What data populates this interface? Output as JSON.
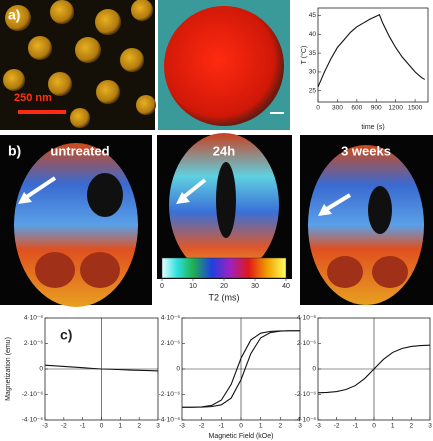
{
  "panels": {
    "a": {
      "label": "a)",
      "scale_bar": "250 nm"
    },
    "b": {
      "label": "b)",
      "images": [
        "untreated",
        "24h",
        "3 weeks"
      ],
      "colorbar": {
        "lim": [
          0,
          40
        ],
        "ticks": [
          0,
          10,
          20,
          30,
          40
        ],
        "label": "T2 (ms)"
      }
    },
    "c": {
      "label": "c)"
    }
  },
  "chart_data": [
    {
      "type": "line",
      "xlabel": "time (s)",
      "ylabel": "T (°C)",
      "x": [
        0,
        100,
        200,
        300,
        400,
        500,
        600,
        700,
        800,
        900,
        950,
        1000,
        1100,
        1200,
        1300,
        1400,
        1500,
        1600,
        1650
      ],
      "series": [
        {
          "color": "#111111",
          "values": [
            26,
            30,
            33.5,
            36.5,
            38.5,
            40.5,
            42,
            43,
            44,
            44.8,
            45.2,
            43,
            39.5,
            36.5,
            34,
            32,
            30,
            28.5,
            28
          ]
        }
      ],
      "xlim": [
        0,
        1700
      ],
      "ylim": [
        22,
        47
      ],
      "xticks": [
        0,
        300,
        600,
        900,
        1200,
        1500
      ],
      "yticks": [
        25,
        30,
        35,
        40,
        45
      ]
    },
    {
      "type": "line",
      "zero_lines": true,
      "x": [
        -3,
        -2.5,
        -2,
        -1.5,
        -1,
        -0.5,
        0,
        0.5,
        1,
        1.5,
        2,
        2.5,
        3
      ],
      "series": [
        {
          "color": "#111111",
          "values": [
            3e-07,
            2.5e-07,
            2e-07,
            1.5e-07,
            1e-07,
            5e-08,
            0,
            -2e-08,
            -5e-08,
            -8e-08,
            -1e-07,
            -1.2e-07,
            -1.5e-07
          ]
        }
      ],
      "xlim": [
        -3,
        3
      ],
      "ylim": [
        -4e-06,
        4e-06
      ],
      "xticks": [
        -3,
        -2,
        -1,
        0,
        1,
        2,
        3
      ],
      "yticks": [
        {
          "value": 4e-06,
          "label": "4·10⁻⁶"
        },
        {
          "value": 2e-06,
          "label": "2·10⁻⁶"
        },
        0,
        {
          "value": -2e-06,
          "label": "-2·10⁻⁶"
        },
        {
          "value": -4e-06,
          "label": "-4·10⁻⁶"
        }
      ]
    },
    {
      "type": "line",
      "zero_lines": true,
      "xlabel": "Magnetic Field (kOe)",
      "ylabel": "Magnetization (emu)",
      "x": [
        -3,
        -2.5,
        -2,
        -1.5,
        -1,
        -0.5,
        0,
        0.5,
        1,
        1.5,
        2,
        2.5,
        3
      ],
      "series": [
        {
          "color": "#111111",
          "values": [
            -3e-06,
            -3e-06,
            -2.99e-06,
            -2.95e-06,
            -2.81e-06,
            -2.28e-06,
            -8.4e-07,
            1.21e-06,
            2.44e-06,
            2.86e-06,
            2.97e-06,
            3e-06,
            3e-06
          ]
        },
        {
          "color": "#111111",
          "values": [
            -3e-06,
            -3e-06,
            -2.97e-06,
            -2.86e-06,
            -2.44e-06,
            -1.21e-06,
            8.4e-07,
            2.28e-06,
            2.81e-06,
            2.95e-06,
            2.99e-06,
            3e-06,
            3e-06
          ]
        }
      ],
      "xlim": [
        -3,
        3
      ],
      "ylim": [
        -4e-06,
        4e-06
      ],
      "xticks": [
        -3,
        -2,
        -1,
        0,
        1,
        2,
        3
      ],
      "yticks": [
        {
          "value": 4e-06,
          "label": "4·10⁻⁶"
        },
        {
          "value": 2e-06,
          "label": "2·10⁻⁶"
        },
        0,
        {
          "value": -2e-06,
          "label": "-2·10⁻⁶"
        },
        {
          "value": -4e-06,
          "label": "-4·10⁻⁶"
        }
      ]
    },
    {
      "type": "line",
      "zero_lines": true,
      "x": [
        -3,
        -2.5,
        -2,
        -1.5,
        -1,
        -0.5,
        0,
        0.5,
        1,
        1.5,
        2,
        2.5,
        3
      ],
      "series": [
        {
          "color": "#111111",
          "values": [
            -1.87e-06,
            -1.84e-06,
            -1.77e-06,
            -1.61e-06,
            -1.3e-06,
            -7.5e-07,
            0,
            7.5e-07,
            1.3e-06,
            1.61e-06,
            1.77e-06,
            1.84e-06,
            1.87e-06
          ]
        }
      ],
      "xlim": [
        -3,
        3
      ],
      "ylim": [
        -4e-06,
        4e-06
      ],
      "xticks": [
        -3,
        -2,
        -1,
        0,
        1,
        2,
        3
      ],
      "yticks": [
        {
          "value": 4e-06,
          "label": "4·10⁻⁶"
        },
        {
          "value": 2e-06,
          "label": "2·10⁻⁶"
        },
        0,
        {
          "value": -2e-06,
          "label": "-2·10⁻⁶"
        },
        {
          "value": -4e-06,
          "label": "-4·10⁻⁶"
        }
      ]
    }
  ]
}
